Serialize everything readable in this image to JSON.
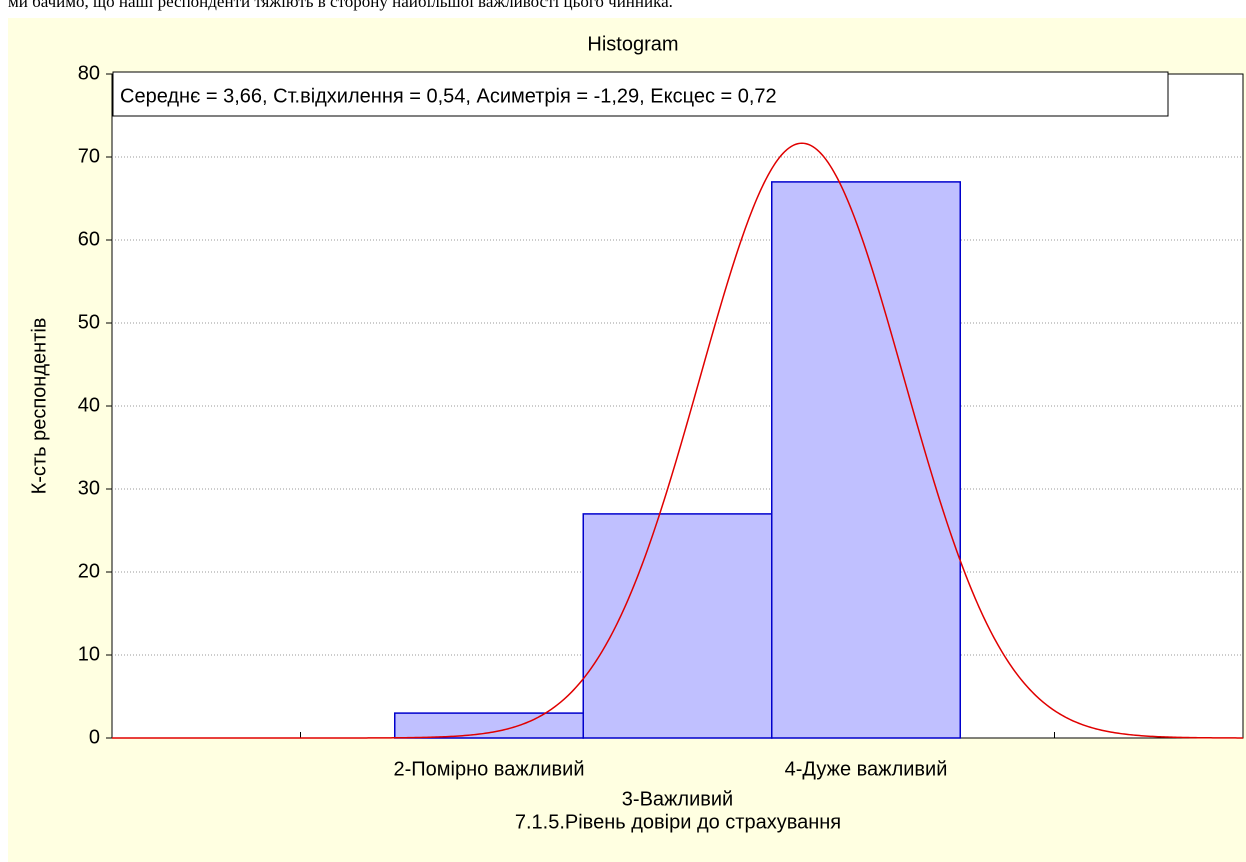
{
  "chart_data": {
    "type": "histogram",
    "context_text": "ми бачимо, що наші респонденти тяжіють в сторону найбільшої важливості цього чинника.",
    "title": "Histogram",
    "stats_text": "Середнє = 3,66, Ст.відхилення = 0,54, Асиметрія = -1,29, Ексцес = 0,72",
    "fit": {
      "mean": 3.66,
      "sd": 0.54,
      "color": "#e00000"
    },
    "y_label": "К-сть респондентів",
    "x_label": "7.1.5.Рівень довіри до страхування",
    "bins": [
      1.5,
      2.5,
      3.5,
      4.5
    ],
    "values": [
      3,
      27,
      67
    ],
    "color": "#c0c0ff",
    "edge_color": "#0000cc",
    "xlim": [
      0,
      6
    ],
    "xticks": [
      {
        "value": 1,
        "label": null
      },
      {
        "value": 2,
        "label": "2-Помірно важливий"
      },
      {
        "value": 3,
        "label": "3-Важливий"
      },
      {
        "value": 4,
        "label": "4-Дуже важливий"
      },
      {
        "value": 5,
        "label": null
      }
    ],
    "ylim": [
      0,
      80
    ],
    "yticks": [
      0,
      10,
      20,
      30,
      40,
      50,
      60,
      70,
      80
    ],
    "grid": true
  }
}
